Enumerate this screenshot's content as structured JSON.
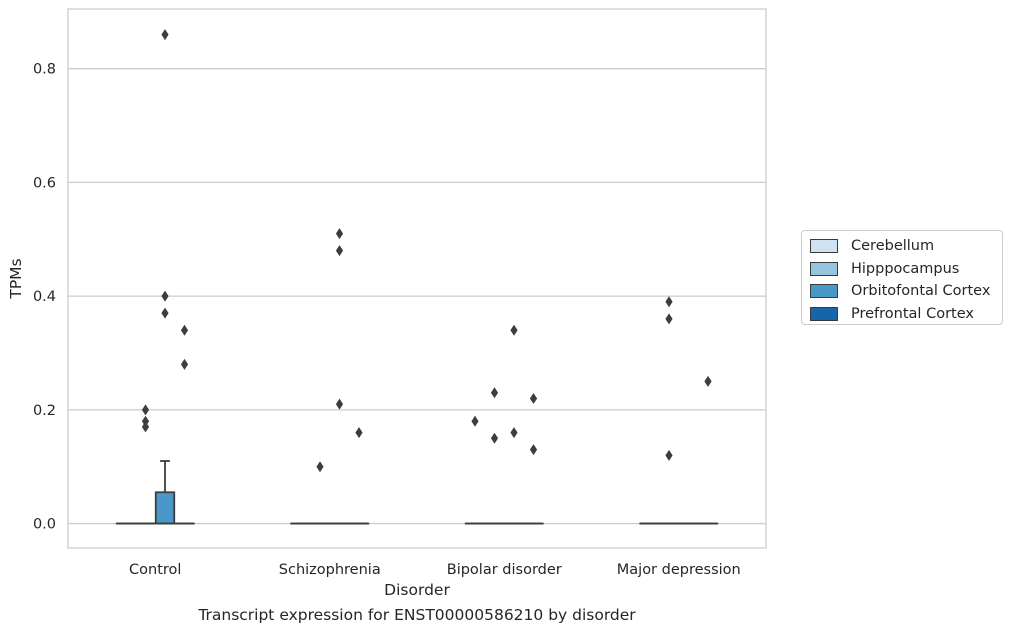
{
  "caption": "Transcript expression for ENST00000586210 by disorder",
  "chart_data": {
    "type": "box",
    "title": "",
    "xlabel": "Disorder",
    "ylabel": "TPMs",
    "ylim": [
      -0.043,
      0.905
    ],
    "yticks": [
      0.0,
      0.2,
      0.4,
      0.6,
      0.8
    ],
    "ytick_labels": [
      "0.0",
      "0.2",
      "0.4",
      "0.6",
      "0.8"
    ],
    "grid": "horizontal",
    "categories": [
      "Control",
      "Schizophrenia",
      "Bipolar disorder",
      "Major depression"
    ],
    "legend_position": "right",
    "series": [
      {
        "name": "Cerebellum",
        "color": "#d0e1f2"
      },
      {
        "name": "Hipppocampus",
        "color": "#94c4df"
      },
      {
        "name": "Orbitofontal Cortex",
        "color": "#4a98c9"
      },
      {
        "name": "Prefrontal Cortex",
        "color": "#1764ab"
      }
    ],
    "boxes": [
      {
        "category": "Control",
        "series": "Cerebellum",
        "q1": 0,
        "median": 0,
        "q3": 0,
        "whisker_low": 0,
        "whisker_high": 0,
        "outliers": []
      },
      {
        "category": "Control",
        "series": "Hipppocampus",
        "q1": 0,
        "median": 0,
        "q3": 0,
        "whisker_low": 0,
        "whisker_high": 0,
        "outliers": [
          0.2,
          0.18,
          0.17
        ]
      },
      {
        "category": "Control",
        "series": "Orbitofontal Cortex",
        "q1": 0,
        "median": 0,
        "q3": 0.055,
        "whisker_low": 0,
        "whisker_high": 0.11,
        "outliers": [
          0.86,
          0.4,
          0.37
        ]
      },
      {
        "category": "Control",
        "series": "Prefrontal Cortex",
        "q1": 0,
        "median": 0,
        "q3": 0,
        "whisker_low": 0,
        "whisker_high": 0,
        "outliers": [
          0.34,
          0.28
        ]
      },
      {
        "category": "Schizophrenia",
        "series": "Cerebellum",
        "q1": 0,
        "median": 0,
        "q3": 0,
        "whisker_low": 0,
        "whisker_high": 0,
        "outliers": []
      },
      {
        "category": "Schizophrenia",
        "series": "Hipppocampus",
        "q1": 0,
        "median": 0,
        "q3": 0,
        "whisker_low": 0,
        "whisker_high": 0,
        "outliers": [
          0.1
        ]
      },
      {
        "category": "Schizophrenia",
        "series": "Orbitofontal Cortex",
        "q1": 0,
        "median": 0,
        "q3": 0,
        "whisker_low": 0,
        "whisker_high": 0,
        "outliers": [
          0.51,
          0.48,
          0.21
        ]
      },
      {
        "category": "Schizophrenia",
        "series": "Prefrontal Cortex",
        "q1": 0,
        "median": 0,
        "q3": 0,
        "whisker_low": 0,
        "whisker_high": 0,
        "outliers": [
          0.16
        ]
      },
      {
        "category": "Bipolar disorder",
        "series": "Cerebellum",
        "q1": 0,
        "median": 0,
        "q3": 0,
        "whisker_low": 0,
        "whisker_high": 0,
        "outliers": [
          0.18
        ]
      },
      {
        "category": "Bipolar disorder",
        "series": "Hipppocampus",
        "q1": 0,
        "median": 0,
        "q3": 0,
        "whisker_low": 0,
        "whisker_high": 0,
        "outliers": [
          0.23,
          0.15
        ]
      },
      {
        "category": "Bipolar disorder",
        "series": "Orbitofontal Cortex",
        "q1": 0,
        "median": 0,
        "q3": 0,
        "whisker_low": 0,
        "whisker_high": 0,
        "outliers": [
          0.34,
          0.16
        ]
      },
      {
        "category": "Bipolar disorder",
        "series": "Prefrontal Cortex",
        "q1": 0,
        "median": 0,
        "q3": 0,
        "whisker_low": 0,
        "whisker_high": 0,
        "outliers": [
          0.22,
          0.13
        ]
      },
      {
        "category": "Major depression",
        "series": "Cerebellum",
        "q1": 0,
        "median": 0,
        "q3": 0,
        "whisker_low": 0,
        "whisker_high": 0,
        "outliers": []
      },
      {
        "category": "Major depression",
        "series": "Hipppocampus",
        "q1": 0,
        "median": 0,
        "q3": 0,
        "whisker_low": 0,
        "whisker_high": 0,
        "outliers": [
          0.39,
          0.36,
          0.12
        ]
      },
      {
        "category": "Major depression",
        "series": "Orbitofontal Cortex",
        "q1": 0,
        "median": 0,
        "q3": 0,
        "whisker_low": 0,
        "whisker_high": 0,
        "outliers": []
      },
      {
        "category": "Major depression",
        "series": "Prefrontal Cortex",
        "q1": 0,
        "median": 0,
        "q3": 0,
        "whisker_low": 0,
        "whisker_high": 0,
        "outliers": [
          0.25
        ]
      }
    ]
  }
}
